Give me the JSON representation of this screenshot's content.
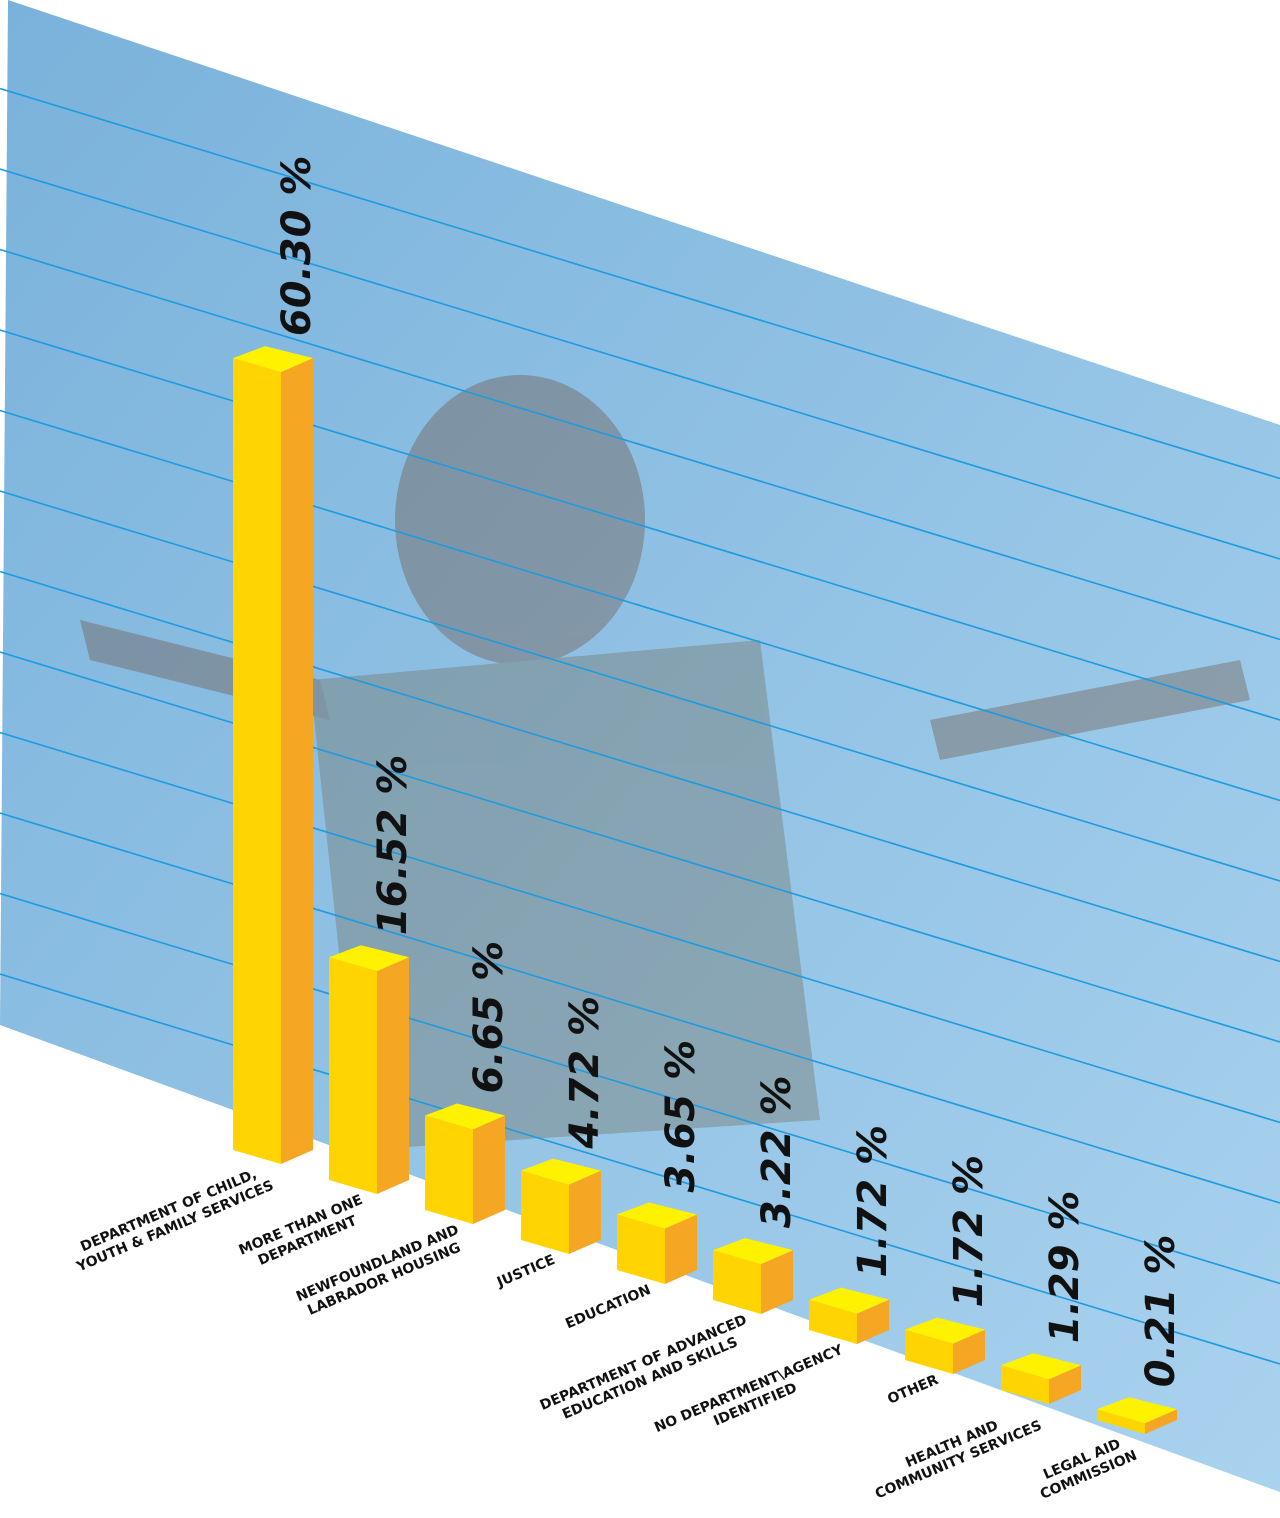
{
  "chart_data": {
    "type": "bar3d",
    "categories": [
      "DEPARTMENT OF CHILD,\nYOUTH & FAMILY SERVICES",
      "MORE THAN ONE\nDEPARTMENT",
      "NEWFOUNDLAND AND\nLABRADOR HOUSING",
      "JUSTICE",
      "EDUCATION",
      "DEPARTMENT OF ADVANCED\nEDUCATION AND SKILLS",
      "NO DEPARTMENT\\AGENCY\nIDENTIFIED",
      "OTHER",
      "HEALTH AND\nCOMMUNITY SERVICES",
      "LEGAL AID\nCOMMISSION"
    ],
    "values": [
      60.3,
      16.52,
      6.65,
      4.72,
      3.65,
      3.22,
      1.72,
      1.72,
      1.29,
      0.21
    ],
    "value_labels": [
      "60.30 %",
      "16.52 %",
      "6.65 %",
      "4.72 %",
      "3.65 %",
      "3.22 %",
      "1.72 %",
      "1.72 %",
      "1.29 %",
      "0.21 %"
    ],
    "color": "#ffd400",
    "side_color": "#f5a623",
    "top_color": "#fff200"
  }
}
